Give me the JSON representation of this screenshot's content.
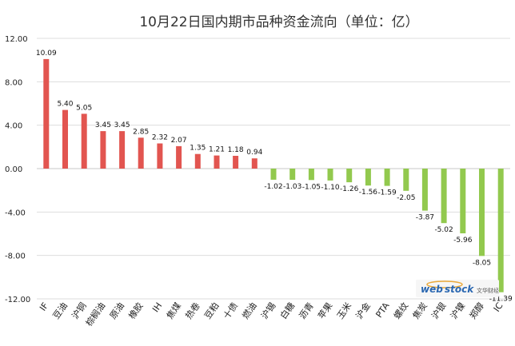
{
  "chart_data": {
    "type": "bar",
    "title": "10月22日国内期市品种资金流向（单位：亿）",
    "categories": [
      "IF",
      "豆油",
      "沪铜",
      "棕榈油",
      "原油",
      "橡胶",
      "IH",
      "焦煤",
      "热卷",
      "豆粕",
      "十债",
      "燃油",
      "沪锡",
      "白糖",
      "沥青",
      "苹果",
      "玉米",
      "沪金",
      "PTA",
      "螺纹",
      "焦炭",
      "沪银",
      "沪镍",
      "郑醇",
      "IC"
    ],
    "values": [
      10.09,
      5.4,
      5.05,
      3.45,
      3.45,
      2.85,
      2.32,
      2.07,
      1.35,
      1.21,
      1.18,
      0.94,
      -1.02,
      -1.03,
      -1.05,
      -1.1,
      -1.26,
      -1.56,
      -1.59,
      -2.05,
      -3.87,
      -5.02,
      -5.96,
      -8.05,
      -11.39
    ],
    "value_labels": [
      "10.09",
      "5.40",
      "5.05",
      "3.45",
      "3.45",
      "2.85",
      "2.32",
      "2.07",
      "1.35",
      "1.21",
      "1.18",
      "0.94",
      "-1.02",
      "-1.03",
      "-1.05",
      "-1.10",
      "-1.26",
      "-1.56",
      "-1.59",
      "-2.05",
      "-3.87",
      "-5.02",
      "-5.96",
      "-8.05",
      "-11.39"
    ],
    "yticks": [
      "12.00",
      "8.00",
      "4.00",
      "0.00",
      "-4.00",
      "-8.00",
      "-12.00"
    ],
    "ylim": [
      -12,
      12
    ],
    "grid": true,
    "colors": {
      "positive": "#e25550",
      "negative": "#92c94e",
      "grid": "#dddddd",
      "axis": "#c8c8c8"
    }
  },
  "watermark": {
    "brand_web": "web",
    "brand_stock": "stock",
    "brand_cn": "文华财经"
  }
}
